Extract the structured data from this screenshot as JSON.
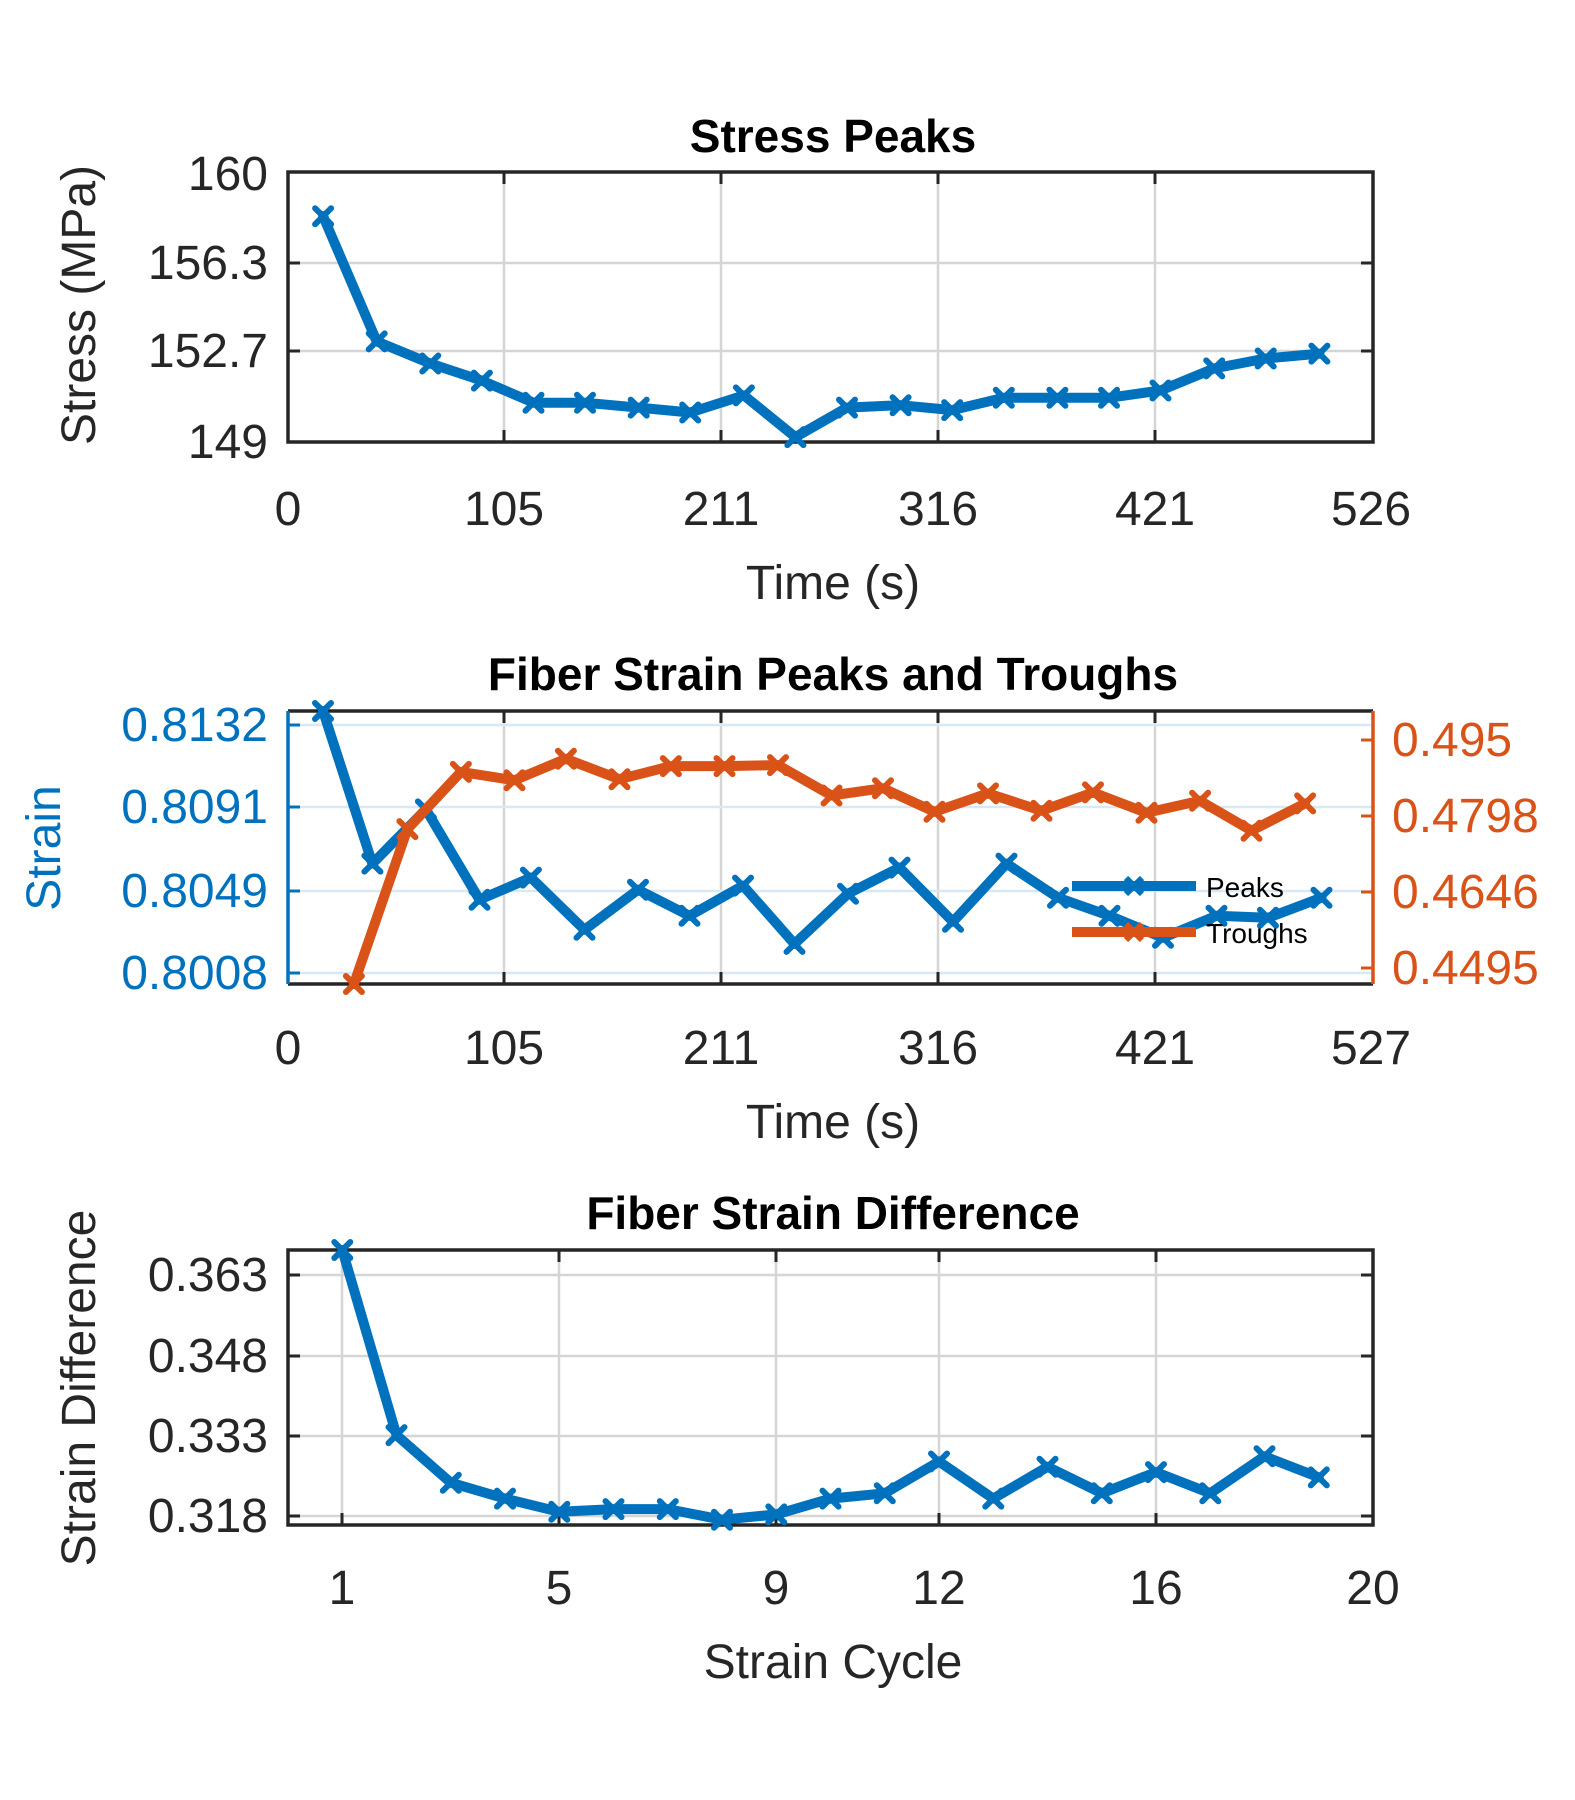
{
  "colors": {
    "peaks": "#0072BD",
    "troughs": "#D95319",
    "axis": "#262626",
    "grid": "#d5d5d5",
    "grid_blue": "#d9e8f5"
  },
  "chart_data": [
    {
      "type": "line",
      "title": "Stress Peaks",
      "xlabel": "Time (s)",
      "ylabel": "Stress (MPa)",
      "xlim": [
        0,
        526
      ],
      "ylim": [
        149,
        160
      ],
      "xticks": [
        "0",
        "105",
        "211",
        "316",
        "421",
        "526"
      ],
      "yticks": [
        "149",
        "152.7",
        "156.3",
        "160"
      ],
      "grid": true,
      "series": [
        {
          "x": [
            17,
            43,
            69,
            94,
            119,
            144,
            170,
            195,
            221,
            246,
            271,
            297,
            322,
            347,
            373,
            398,
            423,
            449,
            474,
            500
          ],
          "y": [
            158.2,
            153.1,
            152.2,
            151.5,
            150.6,
            150.6,
            150.4,
            150.2,
            150.9,
            149.2,
            150.4,
            150.5,
            150.3,
            150.8,
            150.8,
            150.8,
            151.1,
            152.0,
            152.4,
            152.6
          ]
        }
      ]
    },
    {
      "type": "line",
      "title": "Fiber Strain Peaks and Troughs",
      "xlabel": "Time (s)",
      "ylabel": "Strain",
      "xlim": [
        0,
        527
      ],
      "ylim": [
        0.8003,
        0.8139
      ],
      "y2lim": [
        0.4467,
        0.4987
      ],
      "xticks": [
        "0",
        "105",
        "211",
        "316",
        "421",
        "527"
      ],
      "yticks": [
        "0.8008",
        "0.8049",
        "0.8091",
        "0.8132"
      ],
      "y2ticks": [
        "0.4495",
        "0.4646",
        "0.4798",
        "0.495"
      ],
      "grid": true,
      "legend": {
        "position": "right",
        "entries": [
          "Peaks",
          "Troughs"
        ]
      },
      "series": [
        {
          "name": "Peaks",
          "axis": "left",
          "x": [
            17,
            41,
            67,
            93,
            118,
            144,
            170,
            195,
            221,
            246,
            272,
            297,
            323,
            349,
            374,
            399,
            425,
            451,
            476,
            502
          ],
          "y": [
            0.8139,
            0.8063,
            0.809,
            0.8045,
            0.8056,
            0.803,
            0.805,
            0.8037,
            0.8052,
            0.8023,
            0.8048,
            0.8061,
            0.8034,
            0.8063,
            0.8046,
            0.8037,
            0.8026,
            0.8037,
            0.8036,
            0.8046
          ]
        },
        {
          "name": "Troughs",
          "axis": "right",
          "x": [
            32,
            58,
            84,
            110,
            135,
            161,
            186,
            212,
            238,
            264,
            289,
            314,
            340,
            366,
            391,
            417,
            443,
            468,
            494
          ],
          "y": [
            0.4467,
            0.4762,
            0.4871,
            0.4855,
            0.4896,
            0.4857,
            0.4882,
            0.4882,
            0.4884,
            0.4826,
            0.484,
            0.4795,
            0.483,
            0.4797,
            0.4832,
            0.4793,
            0.4816,
            0.4759,
            0.4811
          ]
        }
      ]
    },
    {
      "type": "line",
      "title": "Fiber Strain Difference",
      "xlabel": "Strain Cycle",
      "ylabel": "Strain Difference",
      "xlim": [
        0,
        20
      ],
      "ylim": [
        0.315,
        0.367
      ],
      "xticks": [
        "1",
        "5",
        "9",
        "12",
        "16",
        "20"
      ],
      "xtick_values": [
        1,
        5,
        9,
        12,
        16,
        20
      ],
      "yticks": [
        "0.318",
        "0.333",
        "0.348",
        "0.363"
      ],
      "grid": true,
      "series": [
        {
          "x": [
            1,
            2,
            3,
            4,
            5,
            6,
            7,
            8,
            9,
            10,
            11,
            12,
            13,
            14,
            15,
            16,
            17,
            18,
            19
          ],
          "y": [
            0.367,
            0.332,
            0.323,
            0.32,
            0.3175,
            0.318,
            0.318,
            0.316,
            0.317,
            0.32,
            0.321,
            0.327,
            0.32,
            0.326,
            0.321,
            0.325,
            0.321,
            0.328,
            0.324
          ]
        }
      ]
    }
  ]
}
